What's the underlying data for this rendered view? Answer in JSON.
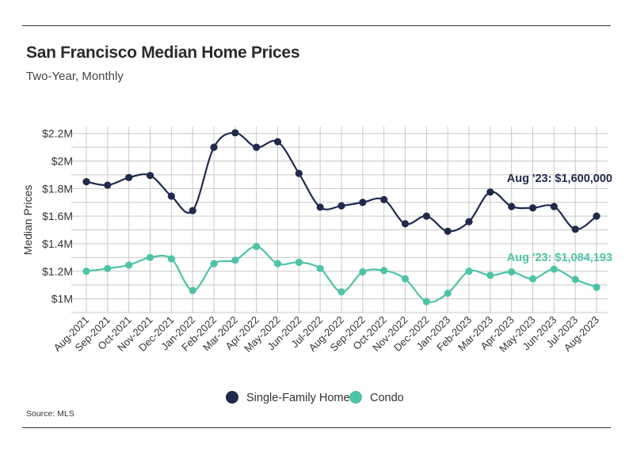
{
  "header": {
    "title": "San Francisco Median Home Prices",
    "subtitle": "Two-Year, Monthly"
  },
  "footer": {
    "source": "Source:  MLS"
  },
  "colors": {
    "sfh": "#1f2a4d",
    "condo": "#4fc3a8",
    "grid": "#c8c8c8"
  },
  "chart_data": {
    "type": "line",
    "title": "San Francisco Median Home Prices",
    "subtitle": "Two-Year, Monthly",
    "xlabel": "",
    "ylabel": "Median Prices",
    "ylim": [
      900000,
      2250000
    ],
    "y_ticks": [
      1000000,
      1200000,
      1400000,
      1600000,
      1800000,
      2000000,
      2200000
    ],
    "y_tick_labels": [
      "$1M",
      "$1.2M",
      "$1.4M",
      "$1.6M",
      "$1.8M",
      "$2M",
      "$2.2M"
    ],
    "grid": true,
    "legend_position": "bottom-center",
    "categories": [
      "Aug-2021",
      "Sep-2021",
      "Oct-2021",
      "Nov-2021",
      "Dec-2021",
      "Jan-2022",
      "Feb-2022",
      "Mar-2022",
      "Apr-2022",
      "May-2022",
      "Jun-2022",
      "Jul-2022",
      "Aug-2022",
      "Sep-2022",
      "Oct-2022",
      "Nov-2022",
      "Dec-2022",
      "Jan-2023",
      "Feb-2023",
      "Mar-2023",
      "Apr-2023",
      "May-2023",
      "Jun-2023",
      "Jul-2023",
      "Aug-2023"
    ],
    "series": [
      {
        "name": "Single-Family Home",
        "color": "#1f2a4d",
        "values": [
          1850000,
          1825000,
          1880000,
          1895000,
          1745000,
          1640000,
          2100000,
          2205000,
          2100000,
          2140000,
          1910000,
          1665000,
          1675000,
          1700000,
          1720000,
          1545000,
          1600000,
          1490000,
          1560000,
          1775000,
          1670000,
          1660000,
          1670000,
          1505000,
          1600000
        ],
        "annotation": "Aug '23: $1,600,000"
      },
      {
        "name": "Condo",
        "color": "#4fc3a8",
        "values": [
          1200000,
          1220000,
          1245000,
          1300000,
          1290000,
          1060000,
          1255000,
          1280000,
          1380000,
          1255000,
          1265000,
          1220000,
          1050000,
          1195000,
          1205000,
          1145000,
          980000,
          1040000,
          1200000,
          1170000,
          1195000,
          1145000,
          1215000,
          1140000,
          1084193
        ],
        "annotation": "Aug '23: $1,084,193"
      }
    ]
  }
}
